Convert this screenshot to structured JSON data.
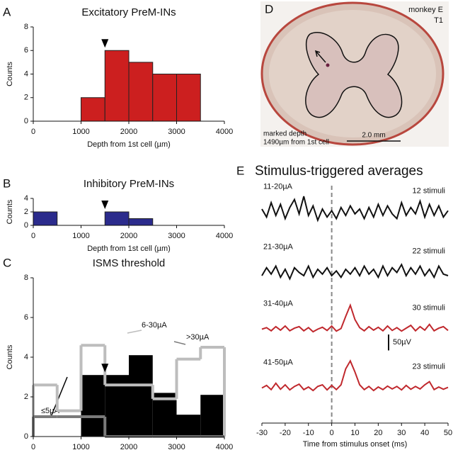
{
  "chart_data": [
    {
      "type": "histogram",
      "panel": "A",
      "title": "Excitatory PreM-INs",
      "xlabel": "Depth from 1st cell (µm)",
      "ylabel": "Counts",
      "bins": [
        1000,
        1500,
        2000,
        2500,
        3000,
        3500
      ],
      "series": [
        {
          "color": "#cc1f1f",
          "filled": true,
          "values": [
            2,
            6,
            5,
            4,
            4
          ]
        }
      ],
      "xlim": [
        0,
        4000
      ],
      "xticks": [
        0,
        1000,
        2000,
        3000,
        4000
      ],
      "ylim": [
        0,
        8
      ],
      "yticks": [
        0,
        2,
        4,
        6,
        8
      ],
      "arrow_x": 1500
    },
    {
      "type": "histogram",
      "panel": "B",
      "title": "Inhibitory PreM-INs",
      "xlabel": "Depth from 1st cell (µm)",
      "ylabel": "Counts",
      "bins": [
        0,
        500,
        1000,
        1500,
        2000,
        2500
      ],
      "series": [
        {
          "color": "#2b2b8c",
          "filled": true,
          "values": [
            2,
            0,
            0,
            2,
            1
          ]
        }
      ],
      "xlim": [
        0,
        4000
      ],
      "xticks": [
        0,
        1000,
        2000,
        3000,
        4000
      ],
      "ylim": [
        0,
        4
      ],
      "yticks": [
        0,
        2,
        4
      ],
      "arrow_x": 1500
    },
    {
      "type": "histogram",
      "panel": "C",
      "title": "ISMS threshold",
      "xlabel": "Depth from 1st cell (µm)",
      "ylabel": "Counts",
      "bins": [
        0,
        500,
        1000,
        1500,
        2000,
        2500,
        3000,
        3500,
        4000
      ],
      "series": [
        {
          "name": "≤5µA",
          "color": "#000000",
          "filled": true,
          "values": [
            0,
            0,
            3.1,
            3.1,
            4.1,
            2.2,
            1.1,
            2.1
          ]
        },
        {
          "name": "6-30µA",
          "color": "#bdbdbd",
          "filled": false,
          "values": [
            2.6,
            1.3,
            4.6,
            2.6,
            2.6,
            1.9,
            3.9,
            4.5
          ]
        },
        {
          "name": ">30µA",
          "color": "#7a7a7a",
          "filled": false,
          "values": [
            1,
            1,
            1,
            0,
            0,
            0,
            0,
            0
          ]
        }
      ],
      "xlim": [
        0,
        4000
      ],
      "xticks": [
        0,
        1000,
        2000,
        3000,
        4000
      ],
      "ylim": [
        0,
        8
      ],
      "yticks": [
        0,
        2,
        4,
        6,
        8
      ],
      "arrow_x": 1500
    },
    {
      "type": "traces",
      "panel": "E",
      "title": "Stimulus-triggered averages",
      "xlabel": "Time from stimulus onset (ms)",
      "x": [
        -30,
        -28,
        -26,
        -24,
        -22,
        -20,
        -18,
        -16,
        -14,
        -12,
        -10,
        -8,
        -6,
        -4,
        -2,
        0,
        2,
        4,
        6,
        8,
        10,
        12,
        14,
        16,
        18,
        20,
        22,
        24,
        26,
        28,
        30,
        32,
        34,
        36,
        38,
        40,
        42,
        44,
        46,
        48,
        50
      ],
      "xlim": [
        -30,
        50
      ],
      "xticks": [
        -30,
        -20,
        -10,
        0,
        10,
        20,
        30,
        40,
        50
      ],
      "ylim": [
        -50,
        150
      ],
      "vline": 0,
      "scalebar": {
        "value": 50,
        "label": "50µV"
      },
      "series": [
        {
          "name": "11-20µA",
          "count": "12 stimuli",
          "color": "#111111",
          "values": [
            10,
            -15,
            30,
            -10,
            25,
            -20,
            15,
            40,
            -5,
            50,
            -10,
            20,
            -25,
            10,
            -15,
            5,
            -20,
            15,
            -10,
            20,
            -5,
            10,
            -20,
            15,
            -15,
            25,
            -10,
            20,
            -5,
            -20,
            30,
            -10,
            15,
            -5,
            35,
            -15,
            25,
            -10,
            20,
            -15,
            5
          ]
        },
        {
          "name": "21-30µA",
          "count": "22 stimuli",
          "color": "#111111",
          "values": [
            -10,
            15,
            -5,
            20,
            -15,
            10,
            -20,
            15,
            0,
            -10,
            20,
            -15,
            10,
            -5,
            15,
            -10,
            5,
            -15,
            10,
            -5,
            15,
            -10,
            20,
            -5,
            10,
            -15,
            20,
            -10,
            15,
            0,
            25,
            -10,
            15,
            -5,
            20,
            -10,
            10,
            -15,
            20,
            -5,
            -10
          ]
        },
        {
          "name": "31-40µA",
          "count": "30 stimuli",
          "color": "#c0282d",
          "values": [
            0,
            5,
            -5,
            8,
            -3,
            10,
            -5,
            3,
            8,
            -5,
            5,
            -8,
            0,
            6,
            -4,
            10,
            -6,
            2,
            40,
            75,
            30,
            5,
            -5,
            8,
            -3,
            6,
            -5,
            10,
            -4,
            5,
            -6,
            3,
            12,
            -5,
            8,
            -3,
            15,
            -5,
            3,
            8,
            -4
          ]
        },
        {
          "name": "41-50µA",
          "count": "23 stimuli",
          "color": "#c0282d",
          "values": [
            0,
            8,
            -5,
            15,
            -4,
            10,
            -6,
            5,
            12,
            -5,
            3,
            -8,
            5,
            10,
            -6,
            8,
            -5,
            10,
            60,
            85,
            50,
            10,
            -5,
            5,
            -8,
            3,
            -5,
            6,
            -3,
            5,
            -6,
            8,
            -4,
            5,
            -3,
            10,
            20,
            -5,
            3,
            -4,
            2
          ]
        }
      ]
    }
  ],
  "image_panel": {
    "panel": "D",
    "subject": "monkey E",
    "segment": "T1",
    "depth_note": [
      "marked depth",
      "1490µm from 1st cell"
    ],
    "scale": "2.0 mm"
  }
}
